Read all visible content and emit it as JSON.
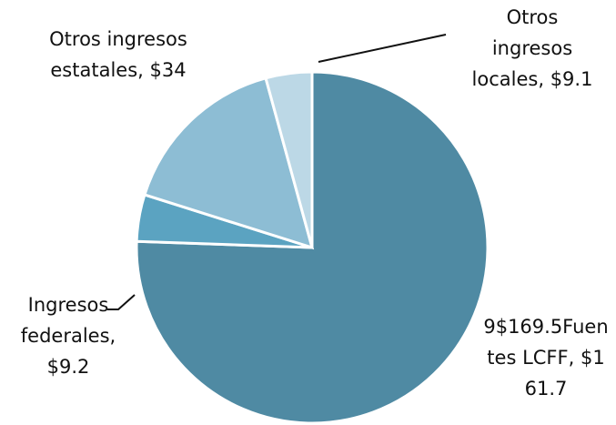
{
  "chart_data": {
    "type": "pie",
    "categories": [
      "9$169.5Fuentes LCFF",
      "Ingresos federales",
      "Otros ingresos estatales",
      "Otros ingresos locales"
    ],
    "values": [
      161.7,
      9.2,
      34,
      9.1
    ],
    "value_labels": [
      "$161.7",
      "$9.2",
      "$34",
      "$9.1"
    ],
    "colors": [
      "#4f8aa3",
      "#5ba3c1",
      "#8dbdd4",
      "#bcd8e6"
    ]
  }
}
